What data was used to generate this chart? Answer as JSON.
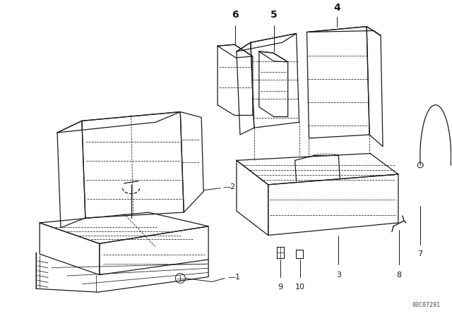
{
  "bg_color": "#ffffff",
  "fig_width": 6.4,
  "fig_height": 4.48,
  "dpi": 100,
  "watermark": "00C07291",
  "lc": "#1a1a1a",
  "lw": 0.9
}
